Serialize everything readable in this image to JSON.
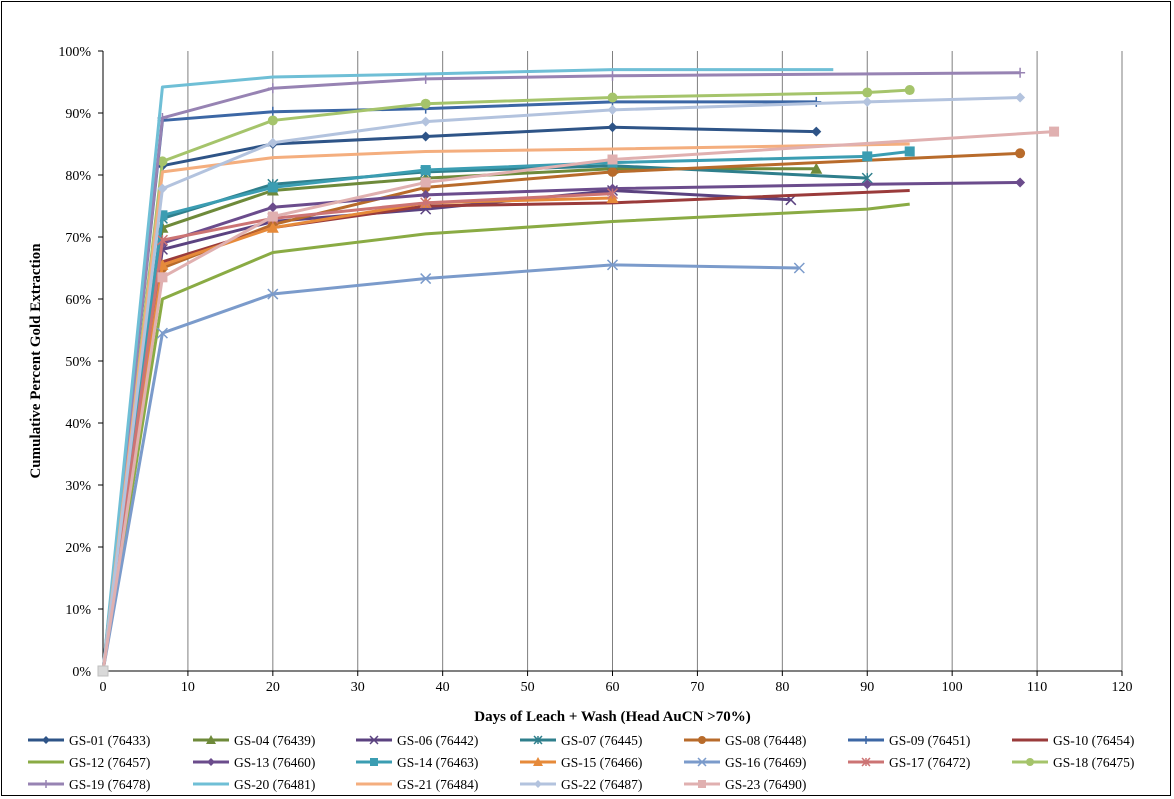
{
  "chart_data": {
    "type": "line",
    "title": "",
    "xlabel": "Days of Leach + Wash (Head AuCN >70%)",
    "ylabel": "Cumulative Percent Gold Extraction",
    "xlim": [
      0,
      120
    ],
    "ylim": [
      0,
      100
    ],
    "x_ticks": [
      "0",
      "10",
      "20",
      "30",
      "40",
      "50",
      "60",
      "70",
      "80",
      "90",
      "100",
      "110",
      "120"
    ],
    "y_ticks": [
      "0%",
      "10%",
      "20%",
      "30%",
      "40%",
      "50%",
      "60%",
      "70%",
      "80%",
      "90%",
      "100%"
    ],
    "grid": "vertical",
    "legend_position": "bottom",
    "series": [
      {
        "name": "GS-01 (76433)",
        "color": "#2e5487",
        "marker": "diamond",
        "points": [
          [
            0,
            0
          ],
          [
            7,
            81.5
          ],
          [
            20,
            85
          ],
          [
            38,
            86.2
          ],
          [
            60,
            87.7
          ],
          [
            84,
            87
          ]
        ]
      },
      {
        "name": "GS-04 (76439)",
        "color": "#6e8a3a",
        "marker": "triangle",
        "points": [
          [
            0,
            0
          ],
          [
            7,
            71.5
          ],
          [
            20,
            77.5
          ],
          [
            38,
            79.5
          ],
          [
            60,
            81
          ],
          [
            84,
            81
          ]
        ]
      },
      {
        "name": "GS-06 (76442)",
        "color": "#5b4280",
        "marker": "x",
        "points": [
          [
            0,
            0
          ],
          [
            7,
            68
          ],
          [
            20,
            72.5
          ],
          [
            38,
            74.5
          ],
          [
            60,
            77.5
          ],
          [
            81,
            76
          ]
        ]
      },
      {
        "name": "GS-07 (76445)",
        "color": "#2f7f8c",
        "marker": "asterisk",
        "points": [
          [
            0,
            0
          ],
          [
            7,
            73
          ],
          [
            20,
            78.5
          ],
          [
            38,
            80.5
          ],
          [
            60,
            81.5
          ],
          [
            90,
            79.5
          ]
        ]
      },
      {
        "name": "GS-08 (76448)",
        "color": "#b86b2b",
        "marker": "circle",
        "points": [
          [
            0,
            0
          ],
          [
            7,
            65
          ],
          [
            20,
            72
          ],
          [
            38,
            78
          ],
          [
            60,
            80.5
          ],
          [
            108,
            83.5
          ]
        ]
      },
      {
        "name": "GS-09 (76451)",
        "color": "#3c67a5",
        "marker": "plus",
        "points": [
          [
            0,
            0
          ],
          [
            7,
            88.8
          ],
          [
            20,
            90.2
          ],
          [
            38,
            90.7
          ],
          [
            60,
            91.8
          ],
          [
            84,
            91.8
          ]
        ]
      },
      {
        "name": "GS-10 (76454)",
        "color": "#9a3b3b",
        "marker": "none",
        "points": [
          [
            0,
            0
          ],
          [
            7,
            66
          ],
          [
            20,
            71.5
          ],
          [
            38,
            75
          ],
          [
            60,
            75.5
          ],
          [
            95,
            77.5
          ]
        ]
      },
      {
        "name": "GS-12 (76457)",
        "color": "#8aab44",
        "marker": "none",
        "points": [
          [
            0,
            0
          ],
          [
            7,
            60
          ],
          [
            20,
            67.5
          ],
          [
            38,
            70.5
          ],
          [
            60,
            72.5
          ],
          [
            90,
            74.5
          ],
          [
            95,
            75.3
          ]
        ]
      },
      {
        "name": "GS-13 (76460)",
        "color": "#6b4c8c",
        "marker": "diamond",
        "points": [
          [
            0,
            0
          ],
          [
            7,
            69
          ],
          [
            20,
            74.8
          ],
          [
            38,
            76.8
          ],
          [
            60,
            77.8
          ],
          [
            90,
            78.5
          ],
          [
            108,
            78.8
          ]
        ]
      },
      {
        "name": "GS-14 (76463)",
        "color": "#3b9db2",
        "marker": "square",
        "points": [
          [
            0,
            0
          ],
          [
            7,
            73.5
          ],
          [
            20,
            78
          ],
          [
            38,
            80.8
          ],
          [
            60,
            82
          ],
          [
            90,
            83
          ],
          [
            95,
            83.8
          ]
        ]
      },
      {
        "name": "GS-15 (76466)",
        "color": "#e68a3a",
        "marker": "triangle",
        "points": [
          [
            0,
            0
          ],
          [
            7,
            65.5
          ],
          [
            20,
            71.5
          ],
          [
            38,
            75.5
          ],
          [
            60,
            76.3
          ]
        ]
      },
      {
        "name": "GS-16 (76469)",
        "color": "#7b9bcb",
        "marker": "x",
        "points": [
          [
            0,
            0
          ],
          [
            7,
            54.5
          ],
          [
            20,
            60.8
          ],
          [
            38,
            63.3
          ],
          [
            60,
            65.5
          ],
          [
            82,
            65
          ]
        ]
      },
      {
        "name": "GS-17 (76472)",
        "color": "#cc7474",
        "marker": "asterisk",
        "points": [
          [
            0,
            0
          ],
          [
            7,
            69.5
          ],
          [
            20,
            73
          ],
          [
            38,
            75.5
          ],
          [
            60,
            77
          ]
        ]
      },
      {
        "name": "GS-18 (76475)",
        "color": "#a5c46b",
        "marker": "circle",
        "points": [
          [
            0,
            0
          ],
          [
            7,
            82.2
          ],
          [
            20,
            88.8
          ],
          [
            38,
            91.5
          ],
          [
            60,
            92.5
          ],
          [
            90,
            93.3
          ],
          [
            95,
            93.7
          ]
        ]
      },
      {
        "name": "GS-19 (76478)",
        "color": "#9783b3",
        "marker": "plus",
        "points": [
          [
            0,
            0
          ],
          [
            7,
            89.2
          ],
          [
            20,
            94
          ],
          [
            38,
            95.5
          ],
          [
            60,
            96
          ],
          [
            108,
            96.5
          ]
        ]
      },
      {
        "name": "GS-20 (76481)",
        "color": "#6fbfd6",
        "marker": "none",
        "points": [
          [
            0,
            0
          ],
          [
            7,
            94.2
          ],
          [
            20,
            95.8
          ],
          [
            38,
            96.3
          ],
          [
            60,
            97
          ],
          [
            86,
            97
          ]
        ]
      },
      {
        "name": "GS-21 (76484)",
        "color": "#f4ae7e",
        "marker": "none",
        "points": [
          [
            0,
            0
          ],
          [
            7,
            80.5
          ],
          [
            20,
            82.8
          ],
          [
            38,
            83.8
          ],
          [
            60,
            84.2
          ],
          [
            95,
            85
          ]
        ]
      },
      {
        "name": "GS-22 (76487)",
        "color": "#b3c3de",
        "marker": "diamond",
        "points": [
          [
            0,
            0
          ],
          [
            7,
            77.8
          ],
          [
            20,
            85.2
          ],
          [
            38,
            88.6
          ],
          [
            60,
            90.5
          ],
          [
            90,
            91.8
          ],
          [
            108,
            92.5
          ]
        ]
      },
      {
        "name": "GS-23 (76490)",
        "color": "#e0b0b0",
        "marker": "square",
        "points": [
          [
            0,
            0
          ],
          [
            7,
            63.5
          ],
          [
            20,
            73.3
          ],
          [
            38,
            78.8
          ],
          [
            60,
            82.5
          ],
          [
            112,
            87
          ]
        ]
      }
    ]
  }
}
